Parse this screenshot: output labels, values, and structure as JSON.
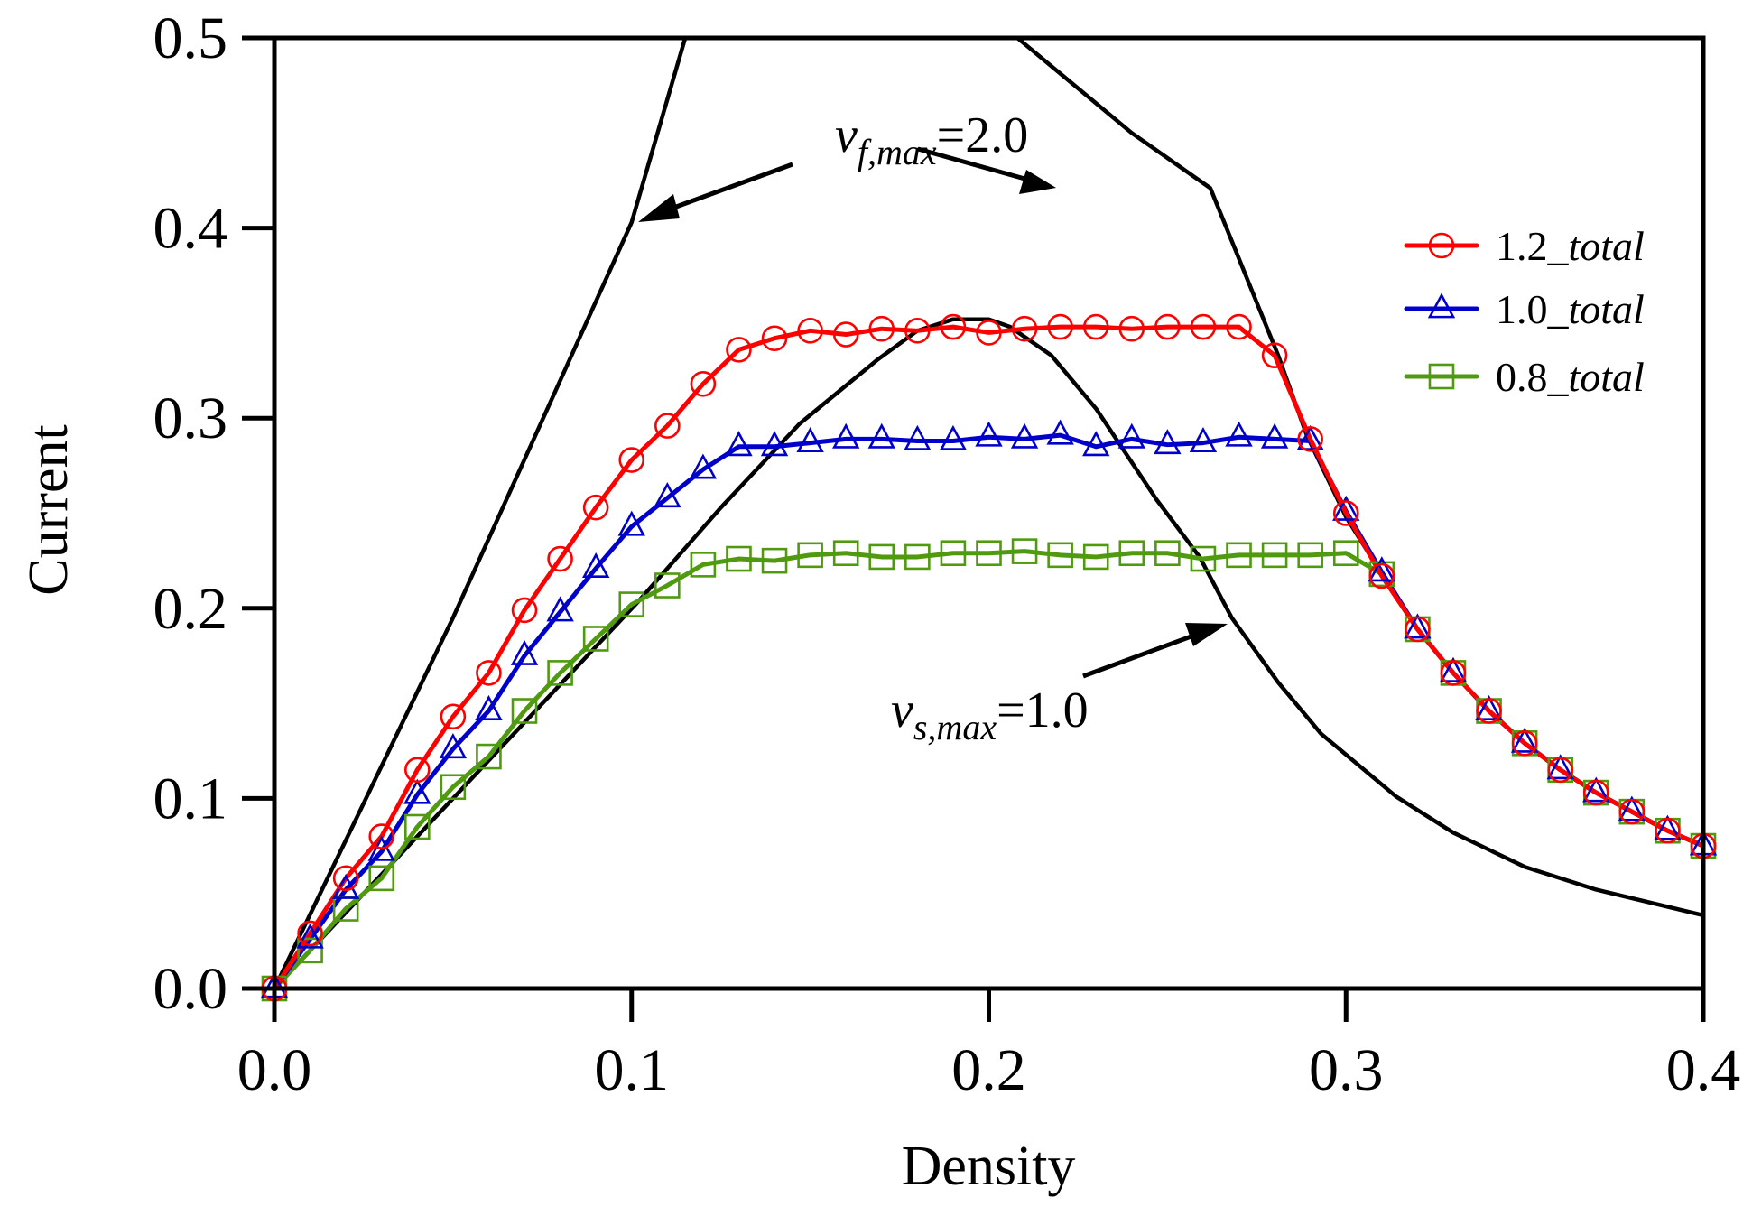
{
  "chart_data": {
    "type": "line",
    "title": "",
    "xlabel": "Density",
    "ylabel": "Current",
    "xlim": [
      0.0,
      0.4
    ],
    "ylim": [
      0.0,
      0.5
    ],
    "xticks": [
      "0.0",
      "0.1",
      "0.2",
      "0.3",
      "0.4"
    ],
    "xtick_values": [
      0.0,
      0.1,
      0.2,
      0.3,
      0.4
    ],
    "yticks": [
      "0.0",
      "0.1",
      "0.2",
      "0.3",
      "0.4",
      "0.5"
    ],
    "ytick_values": [
      0.0,
      0.1,
      0.2,
      0.3,
      0.4,
      0.5
    ],
    "grid": false,
    "legend_position": "top-right",
    "x": [
      0.0,
      0.01,
      0.02,
      0.03,
      0.04,
      0.05,
      0.06,
      0.07,
      0.08,
      0.09,
      0.1,
      0.11,
      0.12,
      0.13,
      0.14,
      0.15,
      0.16,
      0.17,
      0.18,
      0.19,
      0.2,
      0.21,
      0.22,
      0.23,
      0.24,
      0.25,
      0.26,
      0.27,
      0.28,
      0.29,
      0.3,
      0.31,
      0.32,
      0.33,
      0.34,
      0.35,
      0.36,
      0.37,
      0.38,
      0.39,
      0.4
    ],
    "series": [
      {
        "name": "1.2_total",
        "label_prefix": "1.2",
        "label_suffix": "total",
        "color": "#ff0000",
        "marker": "circle",
        "values": [
          0.0,
          0.029,
          0.058,
          0.08,
          0.115,
          0.143,
          0.166,
          0.199,
          0.226,
          0.253,
          0.278,
          0.296,
          0.318,
          0.336,
          0.342,
          0.346,
          0.344,
          0.347,
          0.346,
          0.348,
          0.345,
          0.347,
          0.348,
          0.348,
          0.347,
          0.348,
          0.348,
          0.348,
          0.333,
          0.289,
          0.25,
          0.217,
          0.189,
          0.166,
          0.146,
          0.129,
          0.115,
          0.103,
          0.093,
          0.083,
          0.075
        ]
      },
      {
        "name": "1.0_total",
        "label_prefix": "1.0",
        "label_suffix": "total",
        "color": "#0000cc",
        "marker": "triangle",
        "values": [
          0.0,
          0.026,
          0.052,
          0.072,
          0.102,
          0.126,
          0.146,
          0.175,
          0.198,
          0.221,
          0.243,
          0.258,
          0.273,
          0.285,
          0.285,
          0.287,
          0.289,
          0.289,
          0.288,
          0.288,
          0.29,
          0.289,
          0.291,
          0.285,
          0.289,
          0.286,
          0.287,
          0.29,
          0.289,
          0.288,
          0.251,
          0.219,
          0.189,
          0.166,
          0.146,
          0.129,
          0.115,
          0.103,
          0.093,
          0.083,
          0.075
        ]
      },
      {
        "name": "0.8_total",
        "label_prefix": "0.8",
        "label_suffix": "total",
        "color": "#4f9a0f",
        "marker": "square",
        "values": [
          0.0,
          0.02,
          0.042,
          0.058,
          0.085,
          0.106,
          0.122,
          0.146,
          0.166,
          0.184,
          0.202,
          0.212,
          0.223,
          0.226,
          0.225,
          0.228,
          0.229,
          0.227,
          0.227,
          0.229,
          0.229,
          0.23,
          0.228,
          0.227,
          0.229,
          0.229,
          0.226,
          0.228,
          0.228,
          0.228,
          0.229,
          0.218,
          0.189,
          0.166,
          0.146,
          0.129,
          0.115,
          0.103,
          0.093,
          0.083,
          0.075
        ]
      }
    ],
    "reference_curves": [
      {
        "name": "vf_max_2.0",
        "color": "#000000",
        "x": [
          0.0,
          0.05,
          0.1,
          0.115,
          0.208,
          0.24,
          0.262,
          0.281,
          0.289,
          0.3,
          0.31,
          0.32,
          0.33,
          0.34,
          0.35,
          0.36,
          0.37,
          0.38,
          0.39,
          0.4
        ],
        "values": [
          0.0,
          0.195,
          0.403,
          0.5,
          0.5,
          0.45,
          0.421,
          0.333,
          0.291,
          0.248,
          0.218,
          0.189,
          0.166,
          0.146,
          0.129,
          0.115,
          0.103,
          0.093,
          0.083,
          0.075
        ]
      },
      {
        "name": "vs_max_1.0",
        "color": "#000000",
        "x": [
          0.0,
          0.05,
          0.1016,
          0.125,
          0.147,
          0.169,
          0.18,
          0.19,
          0.2,
          0.206,
          0.2175,
          0.23,
          0.247,
          0.259,
          0.268,
          0.281,
          0.293,
          0.314,
          0.33,
          0.35,
          0.37,
          0.4
        ],
        "values": [
          0.0,
          0.1,
          0.203,
          0.253,
          0.297,
          0.331,
          0.346,
          0.352,
          0.352,
          0.348,
          0.333,
          0.305,
          0.257,
          0.227,
          0.195,
          0.161,
          0.134,
          0.101,
          0.082,
          0.064,
          0.052,
          0.0385
        ]
      }
    ],
    "annotations": [
      {
        "name": "vf-annotation",
        "symbol": "v",
        "subscript": "f,max",
        "value": "=2.0",
        "anchor_x": 0.19,
        "anchor_y": 0.437
      },
      {
        "name": "vs-annotation",
        "symbol": "v",
        "subscript": "s,max",
        "value": "=1.0",
        "anchor_x": 0.173,
        "anchor_y": 0.14
      }
    ]
  }
}
